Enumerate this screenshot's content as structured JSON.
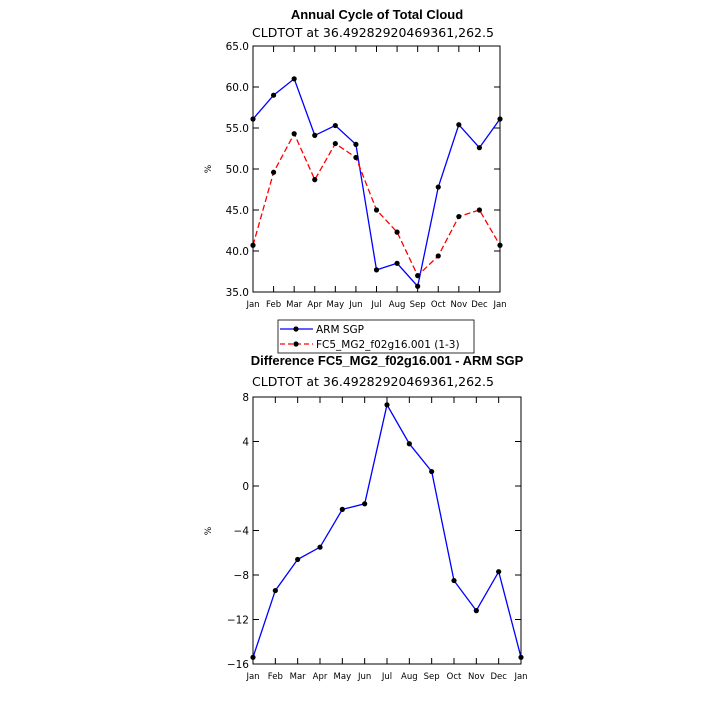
{
  "chart_data": [
    {
      "type": "line",
      "title": "Annual Cycle of Total Cloud",
      "subtitle": "CLDTOT at 36.49282920469361,262.5",
      "ylabel": "%",
      "xlabel": "",
      "ylim": [
        35,
        65
      ],
      "yticks": [
        35,
        40,
        45,
        50,
        55,
        60,
        65
      ],
      "ytick_labels": [
        "35.0",
        "40.0",
        "45.0",
        "50.0",
        "55.0",
        "60.0",
        "65.0"
      ],
      "categories": [
        "Jan",
        "Feb",
        "Mar",
        "Apr",
        "May",
        "Jun",
        "Jul",
        "Aug",
        "Sep",
        "Oct",
        "Nov",
        "Dec",
        "Jan"
      ],
      "series": [
        {
          "name": "ARM SGP",
          "color": "#0000ff",
          "dash": "solid",
          "values": [
            56.1,
            59.0,
            61.0,
            54.1,
            55.3,
            53.0,
            37.7,
            38.5,
            35.7,
            47.8,
            55.4,
            52.6,
            56.1
          ]
        },
        {
          "name": "FC5_MG2_f02g16.001 (1-3)",
          "color": "#ff0000",
          "dash": "dashed",
          "values": [
            40.7,
            49.6,
            54.3,
            48.7,
            53.1,
            51.4,
            45.0,
            42.3,
            37.0,
            39.4,
            44.2,
            45.0,
            40.7
          ]
        }
      ],
      "legend": "bottom-left"
    },
    {
      "type": "line",
      "title": "Difference FC5_MG2_f02g16.001 - ARM SGP",
      "subtitle": "CLDTOT at 36.49282920469361,262.5",
      "ylabel": "%",
      "xlabel": "",
      "ylim": [
        -16,
        8
      ],
      "yticks": [
        -16,
        -12,
        -8,
        -4,
        0,
        4,
        8
      ],
      "ytick_labels": [
        "−16",
        "−12",
        "−8",
        "−4",
        "0",
        "4",
        "8"
      ],
      "categories": [
        "Jan",
        "Feb",
        "Mar",
        "Apr",
        "May",
        "Jun",
        "Jul",
        "Aug",
        "Sep",
        "Oct",
        "Nov",
        "Dec",
        "Jan"
      ],
      "series": [
        {
          "color": "#0000ff",
          "dash": "solid",
          "values": [
            -15.4,
            -9.4,
            -6.6,
            -5.5,
            -2.1,
            -1.6,
            7.3,
            3.8,
            1.3,
            -8.5,
            -11.2,
            -7.7,
            -15.4
          ]
        }
      ]
    }
  ]
}
